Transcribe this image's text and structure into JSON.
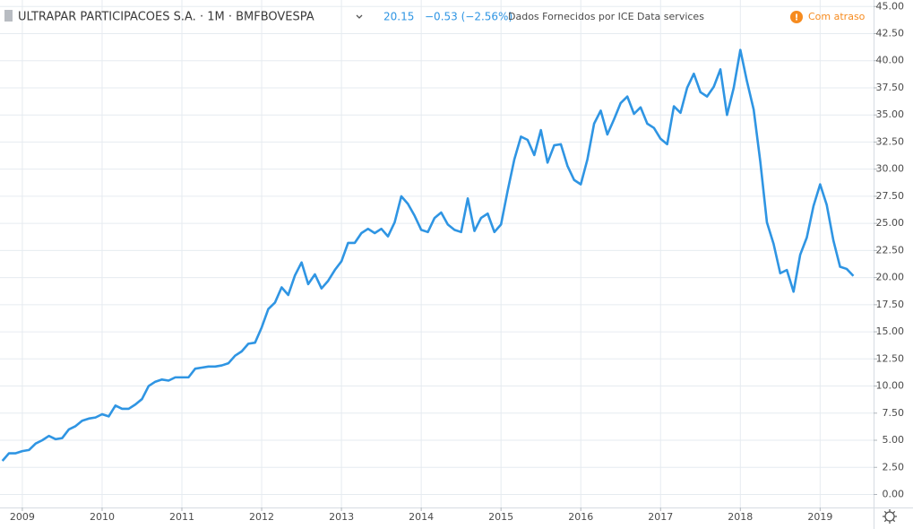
{
  "chart_data": {
    "type": "line",
    "title": "ULTRAPAR PARTICIPACOES S.A. · 1M · BMFBOVESPA",
    "last_value": 20.15,
    "change": "−0.53 (−2.56%)",
    "source": "Dados Fornecidos por ICE Data services",
    "status": "Com atraso",
    "color": "#2f95e3",
    "grid": true,
    "x": [
      2008.75,
      2008.833,
      2008.917,
      2009,
      2009.083,
      2009.167,
      2009.25,
      2009.333,
      2009.417,
      2009.5,
      2009.583,
      2009.667,
      2009.75,
      2009.833,
      2009.917,
      2010,
      2010.083,
      2010.167,
      2010.25,
      2010.333,
      2010.417,
      2010.5,
      2010.583,
      2010.667,
      2010.75,
      2010.833,
      2010.917,
      2011,
      2011.083,
      2011.167,
      2011.25,
      2011.333,
      2011.417,
      2011.5,
      2011.583,
      2011.667,
      2011.75,
      2011.833,
      2011.917,
      2012,
      2012.083,
      2012.167,
      2012.25,
      2012.333,
      2012.417,
      2012.5,
      2012.583,
      2012.667,
      2012.75,
      2012.833,
      2012.917,
      2013,
      2013.083,
      2013.167,
      2013.25,
      2013.333,
      2013.417,
      2013.5,
      2013.583,
      2013.667,
      2013.75,
      2013.833,
      2013.917,
      2014,
      2014.083,
      2014.167,
      2014.25,
      2014.333,
      2014.417,
      2014.5,
      2014.583,
      2014.667,
      2014.75,
      2014.833,
      2014.917,
      2015,
      2015.083,
      2015.167,
      2015.25,
      2015.333,
      2015.417,
      2015.5,
      2015.583,
      2015.667,
      2015.75,
      2015.833,
      2015.917,
      2016,
      2016.083,
      2016.167,
      2016.25,
      2016.333,
      2016.417,
      2016.5,
      2016.583,
      2016.667,
      2016.75,
      2016.833,
      2016.917,
      2017,
      2017.083,
      2017.167,
      2017.25,
      2017.333,
      2017.417,
      2017.5,
      2017.583,
      2017.667,
      2017.75,
      2017.833,
      2017.917,
      2018,
      2018.083,
      2018.167,
      2018.25,
      2018.333,
      2018.417,
      2018.5,
      2018.583,
      2018.667,
      2018.75,
      2018.833,
      2018.917,
      2019,
      2019.083,
      2019.167,
      2019.25,
      2019.333,
      2019.417
    ],
    "values": [
      3.1,
      3.8,
      3.8,
      4.0,
      4.1,
      4.7,
      5.0,
      5.4,
      5.1,
      5.2,
      6.0,
      6.3,
      6.8,
      7.0,
      7.1,
      7.4,
      7.2,
      8.2,
      7.9,
      7.9,
      8.3,
      8.8,
      10.0,
      10.4,
      10.6,
      10.5,
      10.8,
      10.8,
      10.8,
      11.6,
      11.7,
      11.8,
      11.8,
      11.9,
      12.1,
      12.8,
      13.2,
      13.9,
      14.0,
      15.4,
      17.1,
      17.7,
      19.1,
      18.4,
      20.2,
      21.4,
      19.4,
      20.3,
      19.0,
      19.7,
      20.7,
      21.5,
      23.2,
      23.2,
      24.1,
      24.5,
      24.1,
      24.5,
      23.8,
      25.1,
      27.5,
      26.8,
      25.7,
      24.4,
      24.2,
      25.5,
      26.0,
      24.9,
      24.4,
      24.2,
      27.3,
      24.3,
      25.5,
      25.9,
      24.2,
      24.9,
      28.0,
      30.9,
      33.0,
      32.7,
      31.3,
      33.6,
      30.6,
      32.2,
      32.3,
      30.3,
      29.0,
      28.6,
      30.9,
      34.2,
      35.4,
      33.2,
      34.6,
      36.1,
      36.7,
      35.1,
      35.7,
      34.2,
      33.8,
      32.8,
      32.3,
      35.8,
      35.2,
      37.5,
      38.8,
      37.1,
      36.7,
      37.6,
      39.2,
      35.0,
      37.5,
      41.0,
      38.1,
      35.5,
      30.7,
      25.1,
      23.1,
      20.4,
      20.7,
      18.7,
      22.1,
      23.7,
      26.6,
      28.6,
      26.7,
      23.4,
      21.0,
      20.8,
      20.15
    ],
    "xlim": [
      2008.72,
      2019.67
    ],
    "xticks": [
      2009,
      2010,
      2011,
      2012,
      2013,
      2014,
      2015,
      2016,
      2017,
      2018,
      2019
    ],
    "ylim": [
      -1.2,
      45.6
    ],
    "yticks": [
      {
        "value": 0,
        "label": "0.00"
      },
      {
        "value": 2.5,
        "label": "2.50"
      },
      {
        "value": 5,
        "label": "5.00"
      },
      {
        "value": 7.5,
        "label": "7.50"
      },
      {
        "value": 10,
        "label": "10.00"
      },
      {
        "value": 12.5,
        "label": "12.50"
      },
      {
        "value": 15,
        "label": "15.00"
      },
      {
        "value": 17.5,
        "label": "17.50"
      },
      {
        "value": 20,
        "label": "20.00"
      },
      {
        "value": 22.5,
        "label": "22.50"
      },
      {
        "value": 25,
        "label": "25.00"
      },
      {
        "value": 27.5,
        "label": "27.50"
      },
      {
        "value": 30,
        "label": "30.00"
      },
      {
        "value": 32.5,
        "label": "32.50"
      },
      {
        "value": 35,
        "label": "35.00"
      },
      {
        "value": 37.5,
        "label": "37.50"
      },
      {
        "value": 40,
        "label": "40.00"
      },
      {
        "value": 42.5,
        "label": "42.50"
      },
      {
        "value": 45,
        "label": "45.00"
      }
    ]
  }
}
